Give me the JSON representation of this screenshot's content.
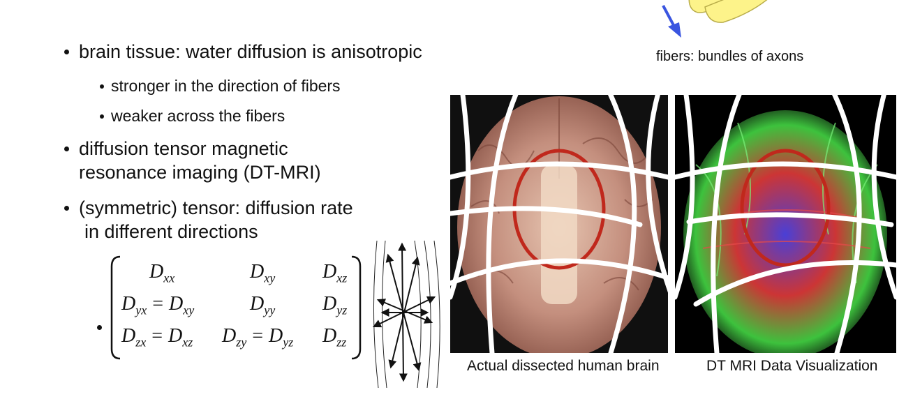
{
  "slide": {
    "bullets": [
      {
        "text": "brain tissue: water diffusion is anisotropic"
      },
      {
        "text": "stronger in the direction of fibers"
      },
      {
        "text": "weaker across the fibers"
      },
      {
        "text_line1": "diffusion tensor magnetic",
        "text_line2": "resonance imaging (DT-MRI)"
      },
      {
        "text_line1": "(symmetric) tensor: diffusion rate",
        "text_line2": "in different directions"
      }
    ],
    "matrix": {
      "r0c0": "D",
      "r0c0_sub": "xx",
      "r0c1": "D",
      "r0c1_sub": "xy",
      "r0c2": "D",
      "r0c2_sub": "xz",
      "r1c0a": "D",
      "r1c0a_sub": "yx",
      "r1c0_eq": "=",
      "r1c0b": "D",
      "r1c0b_sub": "xy",
      "r1c1": "D",
      "r1c1_sub": "yy",
      "r1c2": "D",
      "r1c2_sub": "yz",
      "r2c0a": "D",
      "r2c0a_sub": "zx",
      "r2c0_eq": "=",
      "r2c0b": "D",
      "r2c0b_sub": "xz",
      "r2c1a": "D",
      "r2c1a_sub": "zy",
      "r2c1_eq": "=",
      "r2c1b": "D",
      "r2c1b_sub": "yz",
      "r2c2": "D",
      "r2c2_sub": "zz"
    },
    "fibers_caption": "fibers: bundles of axons",
    "caption_left": "Actual dissected human brain",
    "caption_right": "DT MRI Data Visualization",
    "colors": {
      "fiber_yellow": "#fdf38a",
      "arrow_blue": "#3a55e0",
      "ellipse_red": "#c0281c",
      "brain_tissue": "#b88372",
      "panel_black": "#000000"
    }
  }
}
